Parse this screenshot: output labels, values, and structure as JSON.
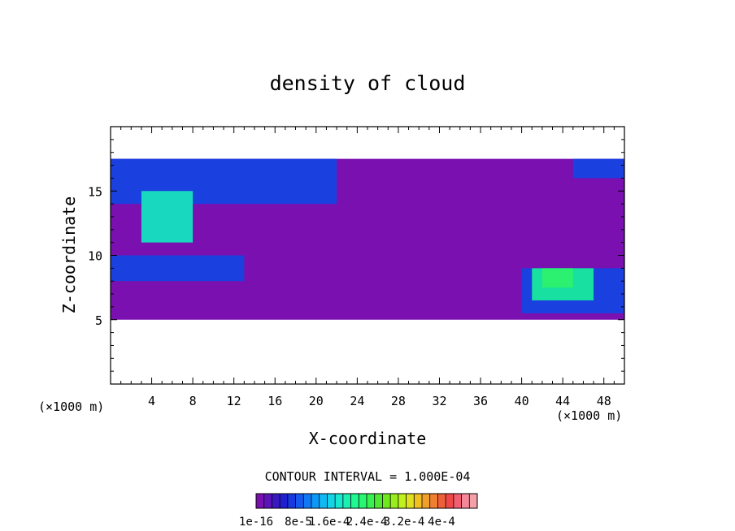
{
  "chart_data": {
    "type": "heatmap",
    "title": "density of cloud",
    "xlabel": "X-coordinate",
    "ylabel": "Z-coordinate",
    "x_unit": "(×1000 m)",
    "x_unit_right": "(×1000 m)",
    "xlim": [
      0,
      50
    ],
    "ylim": [
      0,
      20
    ],
    "x_ticks": [
      4,
      8,
      12,
      16,
      20,
      24,
      28,
      32,
      36,
      40,
      44,
      48
    ],
    "y_ticks": [
      5,
      10,
      15
    ],
    "contour_interval_text": "CONTOUR INTERVAL = 1.000E-04",
    "colorbar": {
      "colors": [
        "#7a10b0",
        "#5a14b8",
        "#3a18c0",
        "#2020d0",
        "#1838e0",
        "#1458ec",
        "#1078f4",
        "#0c98f8",
        "#10b8f4",
        "#14d4e8",
        "#18e8d0",
        "#1cf0b0",
        "#20f890",
        "#28f870",
        "#38f050",
        "#50e830",
        "#70e820",
        "#98ec20",
        "#c0f020",
        "#e0e020",
        "#f0c020",
        "#f0a028",
        "#f08030",
        "#f06038",
        "#f04848",
        "#f06070",
        "#f48898",
        "#f4a0a8"
      ],
      "labels": [
        "1e-16",
        "8e-5",
        "1.6e-4",
        "2.4e-4",
        "3.2e-4",
        "4e-4"
      ]
    },
    "regions": [
      {
        "level": "trace",
        "color": "#7a10b0",
        "x_range": [
          0,
          50
        ],
        "z_range": [
          5,
          17.5
        ]
      },
      {
        "level": "low",
        "color": "#1a40e0",
        "x_range": [
          0,
          22
        ],
        "z_range": [
          14,
          17.5
        ]
      },
      {
        "level": "low",
        "color": "#1a40e0",
        "x_range": [
          0,
          13
        ],
        "z_range": [
          8,
          10
        ]
      },
      {
        "level": "low",
        "color": "#1a40e0",
        "x_range": [
          40,
          50
        ],
        "z_range": [
          5.5,
          9
        ]
      },
      {
        "level": "low",
        "color": "#1a40e0",
        "x_range": [
          45,
          50
        ],
        "z_range": [
          16,
          17.5
        ]
      },
      {
        "level": "medium",
        "color": "#18d8c0",
        "x_range": [
          3,
          8
        ],
        "z_range": [
          11,
          15
        ]
      },
      {
        "level": "medium",
        "color": "#18e0a0",
        "x_range": [
          41,
          47
        ],
        "z_range": [
          6.5,
          9
        ]
      },
      {
        "level": "peak",
        "color": "#2cf070",
        "x_range": [
          42,
          45
        ],
        "z_range": [
          7.5,
          9
        ]
      }
    ]
  }
}
